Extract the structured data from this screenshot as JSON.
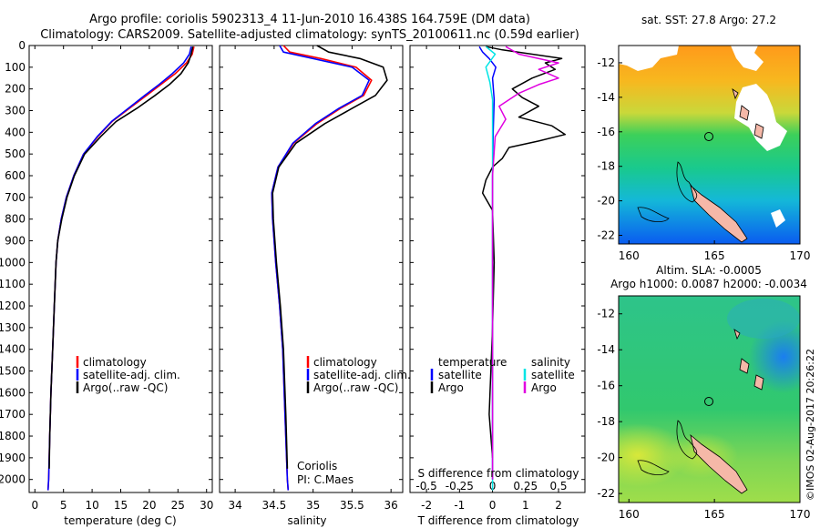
{
  "header": {
    "line1": "Argo profile: coriolis 5902313_4 11-Jun-2010 16.438S 164.759E (DM data)",
    "line2": "Climatology: CARS2009. Satellite-adjusted climatology: synTS_20100611.nc (0.59d earlier)"
  },
  "watermark": "©IMOS 02-Aug-2017 20:26:22",
  "colors": {
    "climatology": "#ff0000",
    "satellite": "#0000ff",
    "argo": "#000000",
    "sal_satellite": "#00e5e5",
    "sal_argo": "#e000e0"
  },
  "chart_data": [
    {
      "type": "line",
      "name": "temperature-profile",
      "xlabel": "temperature (deg C)",
      "ylabel": "",
      "xlim": [
        -1,
        31
      ],
      "ylim": [
        2060,
        0
      ],
      "xticks": [
        "0",
        "5",
        "10",
        "15",
        "20",
        "25",
        "30"
      ],
      "yticks": [
        "0",
        "100",
        "200",
        "300",
        "400",
        "500",
        "600",
        "700",
        "800",
        "900",
        "1000",
        "1100",
        "1200",
        "1300",
        "1400",
        "1500",
        "1600",
        "1700",
        "1800",
        "1900",
        "2000"
      ],
      "legend": [
        "climatology",
        "satellite-adj. clim.",
        "Argo(..raw -QC)"
      ],
      "series": [
        {
          "name": "climatology",
          "points": [
            [
              27.8,
              5
            ],
            [
              27.5,
              40
            ],
            [
              26.5,
              80
            ],
            [
              24.5,
              130
            ],
            [
              22,
              180
            ],
            [
              19.5,
              230
            ],
            [
              16.5,
              290
            ],
            [
              13.5,
              350
            ],
            [
              11,
              420
            ],
            [
              8.5,
              500
            ],
            [
              6.8,
              600
            ],
            [
              5.5,
              700
            ],
            [
              4.6,
              800
            ],
            [
              4,
              900
            ],
            [
              3.7,
              1000
            ],
            [
              3.4,
              1200
            ],
            [
              3.1,
              1400
            ],
            [
              2.8,
              1600
            ],
            [
              2.6,
              1800
            ],
            [
              2.4,
              2000
            ],
            [
              2.3,
              2050
            ]
          ]
        },
        {
          "name": "satellite-adj. clim.",
          "points": [
            [
              27.3,
              5
            ],
            [
              27,
              40
            ],
            [
              26,
              80
            ],
            [
              24,
              130
            ],
            [
              21.7,
              180
            ],
            [
              19.2,
              230
            ],
            [
              16.3,
              290
            ],
            [
              13.4,
              350
            ],
            [
              10.9,
              420
            ],
            [
              8.5,
              500
            ],
            [
              6.8,
              600
            ],
            [
              5.5,
              700
            ],
            [
              4.6,
              800
            ],
            [
              4,
              900
            ],
            [
              3.7,
              1000
            ],
            [
              3.4,
              1200
            ],
            [
              3.1,
              1400
            ],
            [
              2.8,
              1600
            ],
            [
              2.6,
              1800
            ],
            [
              2.4,
              2000
            ],
            [
              2.3,
              2050
            ]
          ]
        },
        {
          "name": "Argo(..raw -QC)",
          "points": [
            [
              27.6,
              5
            ],
            [
              27.3,
              40
            ],
            [
              26.8,
              80
            ],
            [
              25.5,
              130
            ],
            [
              23.5,
              180
            ],
            [
              21,
              230
            ],
            [
              17.8,
              290
            ],
            [
              14.2,
              350
            ],
            [
              11.5,
              420
            ],
            [
              8.7,
              500
            ],
            [
              6.9,
              600
            ],
            [
              5.6,
              700
            ],
            [
              4.7,
              800
            ],
            [
              4,
              900
            ],
            [
              3.7,
              1000
            ],
            [
              3.4,
              1200
            ],
            [
              3.1,
              1400
            ],
            [
              2.8,
              1600
            ],
            [
              2.6,
              1800
            ],
            [
              2.5,
              1950
            ]
          ]
        }
      ]
    },
    {
      "type": "line",
      "name": "salinity-profile",
      "xlabel": "salinity",
      "xlim": [
        33.8,
        36.15
      ],
      "xticks": [
        "34",
        "34.5",
        "35",
        "35.5",
        "36"
      ],
      "legend": [
        "climatology",
        "satellite-adj. clim.",
        "Argo(..raw -QC)"
      ],
      "annotation": [
        "Coriolis",
        "PI: C.Maes"
      ],
      "series": [
        {
          "name": "climatology",
          "points": [
            [
              34.62,
              0
            ],
            [
              34.7,
              30
            ],
            [
              35.1,
              60
            ],
            [
              35.55,
              100
            ],
            [
              35.75,
              160
            ],
            [
              35.65,
              230
            ],
            [
              35.35,
              290
            ],
            [
              35.05,
              360
            ],
            [
              34.75,
              450
            ],
            [
              34.55,
              560
            ],
            [
              34.47,
              680
            ],
            [
              34.48,
              800
            ],
            [
              34.52,
              1000
            ],
            [
              34.57,
              1200
            ],
            [
              34.61,
              1400
            ],
            [
              34.64,
              1700
            ],
            [
              34.67,
              2000
            ],
            [
              34.68,
              2050
            ]
          ]
        },
        {
          "name": "satellite-adj. clim.",
          "points": [
            [
              34.57,
              0
            ],
            [
              34.62,
              30
            ],
            [
              35,
              60
            ],
            [
              35.5,
              100
            ],
            [
              35.72,
              160
            ],
            [
              35.63,
              230
            ],
            [
              35.33,
              290
            ],
            [
              35.03,
              360
            ],
            [
              34.74,
              450
            ],
            [
              34.55,
              560
            ],
            [
              34.47,
              680
            ],
            [
              34.48,
              800
            ],
            [
              34.52,
              1000
            ],
            [
              34.57,
              1200
            ],
            [
              34.61,
              1400
            ],
            [
              34.64,
              1700
            ],
            [
              34.67,
              2000
            ],
            [
              34.68,
              2050
            ]
          ]
        },
        {
          "name": "Argo(..raw -QC)",
          "points": [
            [
              35.05,
              0
            ],
            [
              35.2,
              30
            ],
            [
              35.6,
              60
            ],
            [
              35.9,
              100
            ],
            [
              35.95,
              160
            ],
            [
              35.8,
              230
            ],
            [
              35.5,
              290
            ],
            [
              35.15,
              360
            ],
            [
              34.78,
              450
            ],
            [
              34.56,
              560
            ],
            [
              34.48,
              680
            ],
            [
              34.49,
              800
            ],
            [
              34.53,
              1000
            ],
            [
              34.58,
              1200
            ],
            [
              34.62,
              1400
            ],
            [
              34.65,
              1700
            ],
            [
              34.67,
              1950
            ]
          ]
        }
      ]
    },
    {
      "type": "line",
      "name": "difference-profile",
      "xlabel": "T difference from climatology",
      "xlabel_top": "S difference from climatology",
      "xlim": [
        -2.5,
        2.8
      ],
      "xticks": [
        "-2",
        "-1",
        "0",
        "1",
        "2"
      ],
      "xticks_s": [
        "-0.5",
        "-0.25",
        "0",
        "0.25",
        "0.5"
      ],
      "legend_left_title": "temperature",
      "legend_right_title": "salinity",
      "legend": [
        "satellite",
        "Argo",
        "satellite",
        "Argo"
      ],
      "series": [
        {
          "name": "T satellite",
          "points": [
            [
              -0.4,
              5
            ],
            [
              -0.3,
              30
            ],
            [
              -0.1,
              60
            ],
            [
              0.1,
              100
            ],
            [
              0,
              150
            ],
            [
              0.05,
              250
            ],
            [
              0.02,
              400
            ],
            [
              0,
              600
            ],
            [
              0,
              2000
            ]
          ]
        },
        {
          "name": "T Argo",
          "points": [
            [
              -0.2,
              5
            ],
            [
              0.3,
              20
            ],
            [
              1.2,
              40
            ],
            [
              2.1,
              60
            ],
            [
              1.6,
              80
            ],
            [
              1.9,
              110
            ],
            [
              1.2,
              150
            ],
            [
              0.6,
              200
            ],
            [
              0.9,
              240
            ],
            [
              1.4,
              280
            ],
            [
              0.8,
              330
            ],
            [
              1.8,
              370
            ],
            [
              2.2,
              410
            ],
            [
              1.4,
              440
            ],
            [
              0.5,
              470
            ],
            [
              0.3,
              520
            ],
            [
              0,
              560
            ],
            [
              -0.2,
              620
            ],
            [
              -0.3,
              680
            ],
            [
              0,
              760
            ],
            [
              0.05,
              1000
            ],
            [
              0,
              1300
            ],
            [
              -0.1,
              1700
            ],
            [
              0,
              1900
            ]
          ]
        },
        {
          "name": "S satellite",
          "points": [
            [
              -0.05,
              5
            ],
            [
              0.02,
              40
            ],
            [
              -0.05,
              100
            ],
            [
              -0.02,
              170
            ],
            [
              0,
              250
            ],
            [
              0,
              600
            ],
            [
              0,
              2050
            ]
          ]
        },
        {
          "name": "S Argo",
          "points": [
            [
              0.1,
              5
            ],
            [
              0.2,
              40
            ],
            [
              0.5,
              80
            ],
            [
              0.35,
              110
            ],
            [
              0.5,
              150
            ],
            [
              0.35,
              180
            ],
            [
              0.2,
              220
            ],
            [
              0.05,
              280
            ],
            [
              0.1,
              340
            ],
            [
              0.02,
              420
            ],
            [
              0,
              600
            ],
            [
              0,
              2000
            ]
          ]
        }
      ]
    }
  ],
  "maps": {
    "sst": {
      "title": "sat. SST: 27.8 Argo: 27.2",
      "xticks": [
        "160",
        "165",
        "170"
      ],
      "yticks": [
        "-12",
        "-14",
        "-16",
        "-18",
        "-20",
        "-22"
      ]
    },
    "sla": {
      "title_line1": "Altim. SLA: -0.0005",
      "title_line2": "Argo h1000: 0.0087 h2000: -0.0034",
      "xticks": [
        "160",
        "165",
        "170"
      ],
      "yticks": [
        "-12",
        "-14",
        "-16",
        "-18",
        "-20",
        "-22"
      ]
    }
  }
}
